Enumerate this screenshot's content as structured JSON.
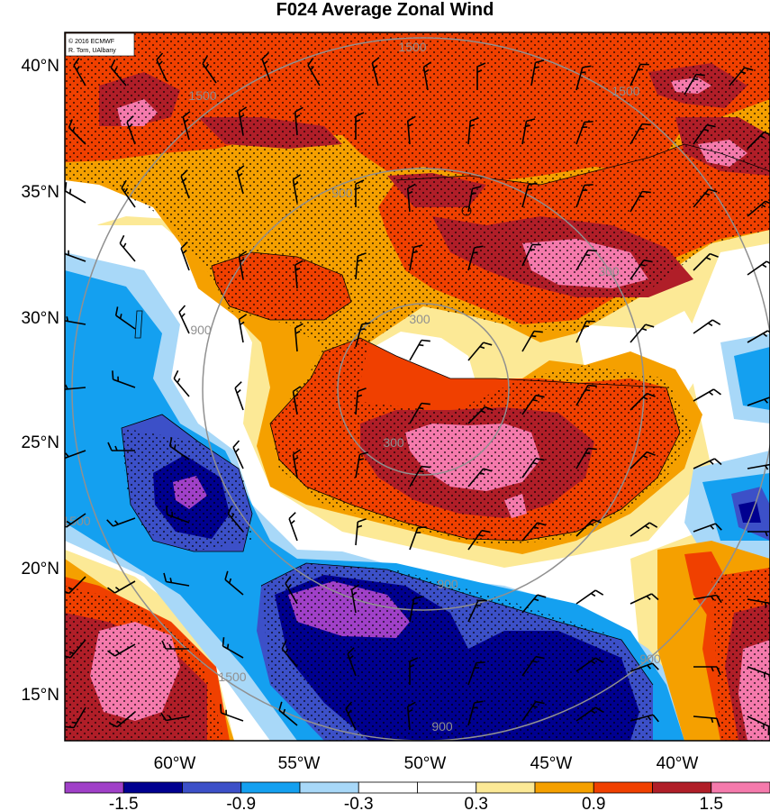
{
  "title": "F024 Average Zonal Wind",
  "credit": {
    "line1": "© 2016 ECMWF",
    "line2": "R. Torn, UAlbany"
  },
  "map": {
    "lat_labels": [
      "40°N",
      "35°N",
      "30°N",
      "25°N",
      "20°N",
      "15°N"
    ],
    "lon_labels": [
      "60°W",
      "55°W",
      "50°W",
      "45°W",
      "40°W"
    ],
    "ring_label_values": [
      "1500",
      "1500",
      "1500",
      "1500",
      "1500",
      "900",
      "900",
      "900",
      "900",
      "900",
      "300",
      "300",
      "300"
    ]
  },
  "colorbar": {
    "colors": [
      "#a040c8",
      "#000090",
      "#3c50c8",
      "#14a0f0",
      "#a8d8f8",
      "#ffffff",
      "#ffffff",
      "#fce996",
      "#f5a000",
      "#f04000",
      "#b01e28",
      "#f57aac"
    ],
    "labels": [
      "-1.5",
      "-0.9",
      "-0.3",
      "0.3",
      "0.9",
      "1.5"
    ]
  },
  "palette": {
    "red": "#f04000",
    "orange": "#f5a000",
    "darkred": "#b01e28",
    "pink": "#f57aac",
    "yellow": "#fce996",
    "cyan": "#14a0f0",
    "lightblue": "#a8d8f8",
    "blue": "#3c50c8",
    "navy": "#000090",
    "purple": "#a040c8",
    "ring": "#909090"
  }
}
